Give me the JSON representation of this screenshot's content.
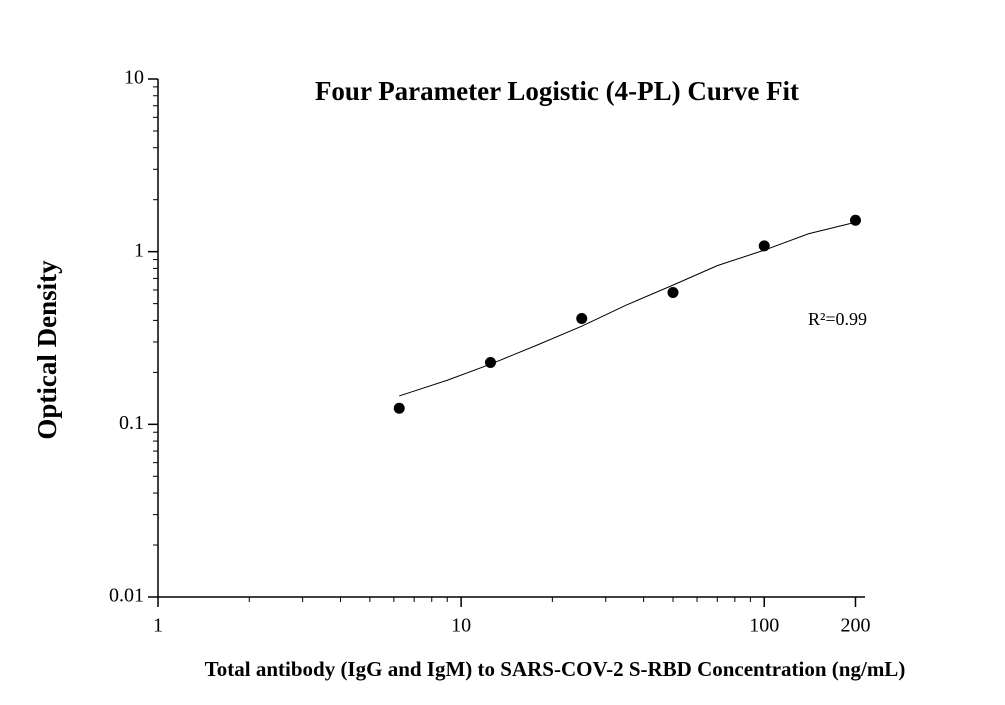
{
  "chart_data": {
    "type": "scatter",
    "title": "Four Parameter Logistic (4-PL) Curve Fit",
    "x_label": "Total antibody (IgG and IgM) to SARS-COV-2 S-RBD  Concentration (ng/mL)",
    "y_label": "Optical Density",
    "annotation": "R²=0.99",
    "log_x": true,
    "log_y": true,
    "xlim": [
      1,
      215
    ],
    "ylim": [
      0.01,
      10
    ],
    "xticks": [
      1,
      10,
      100,
      200
    ],
    "yticks": [
      0.01,
      0.1,
      1,
      10
    ],
    "series": [
      {
        "color": "#000000",
        "x": [
          6.25,
          12.5,
          25,
          50,
          100,
          200
        ],
        "values": [
          0.124,
          0.228,
          0.41,
          0.58,
          1.08,
          1.52
        ]
      },
      {
        "type": "line",
        "color": "#000000",
        "x": [
          6.25,
          9,
          12.5,
          18,
          25,
          35,
          50,
          70,
          100,
          140,
          200
        ],
        "values": [
          0.146,
          0.18,
          0.223,
          0.29,
          0.37,
          0.49,
          0.64,
          0.83,
          1.02,
          1.27,
          1.48
        ]
      }
    ]
  }
}
